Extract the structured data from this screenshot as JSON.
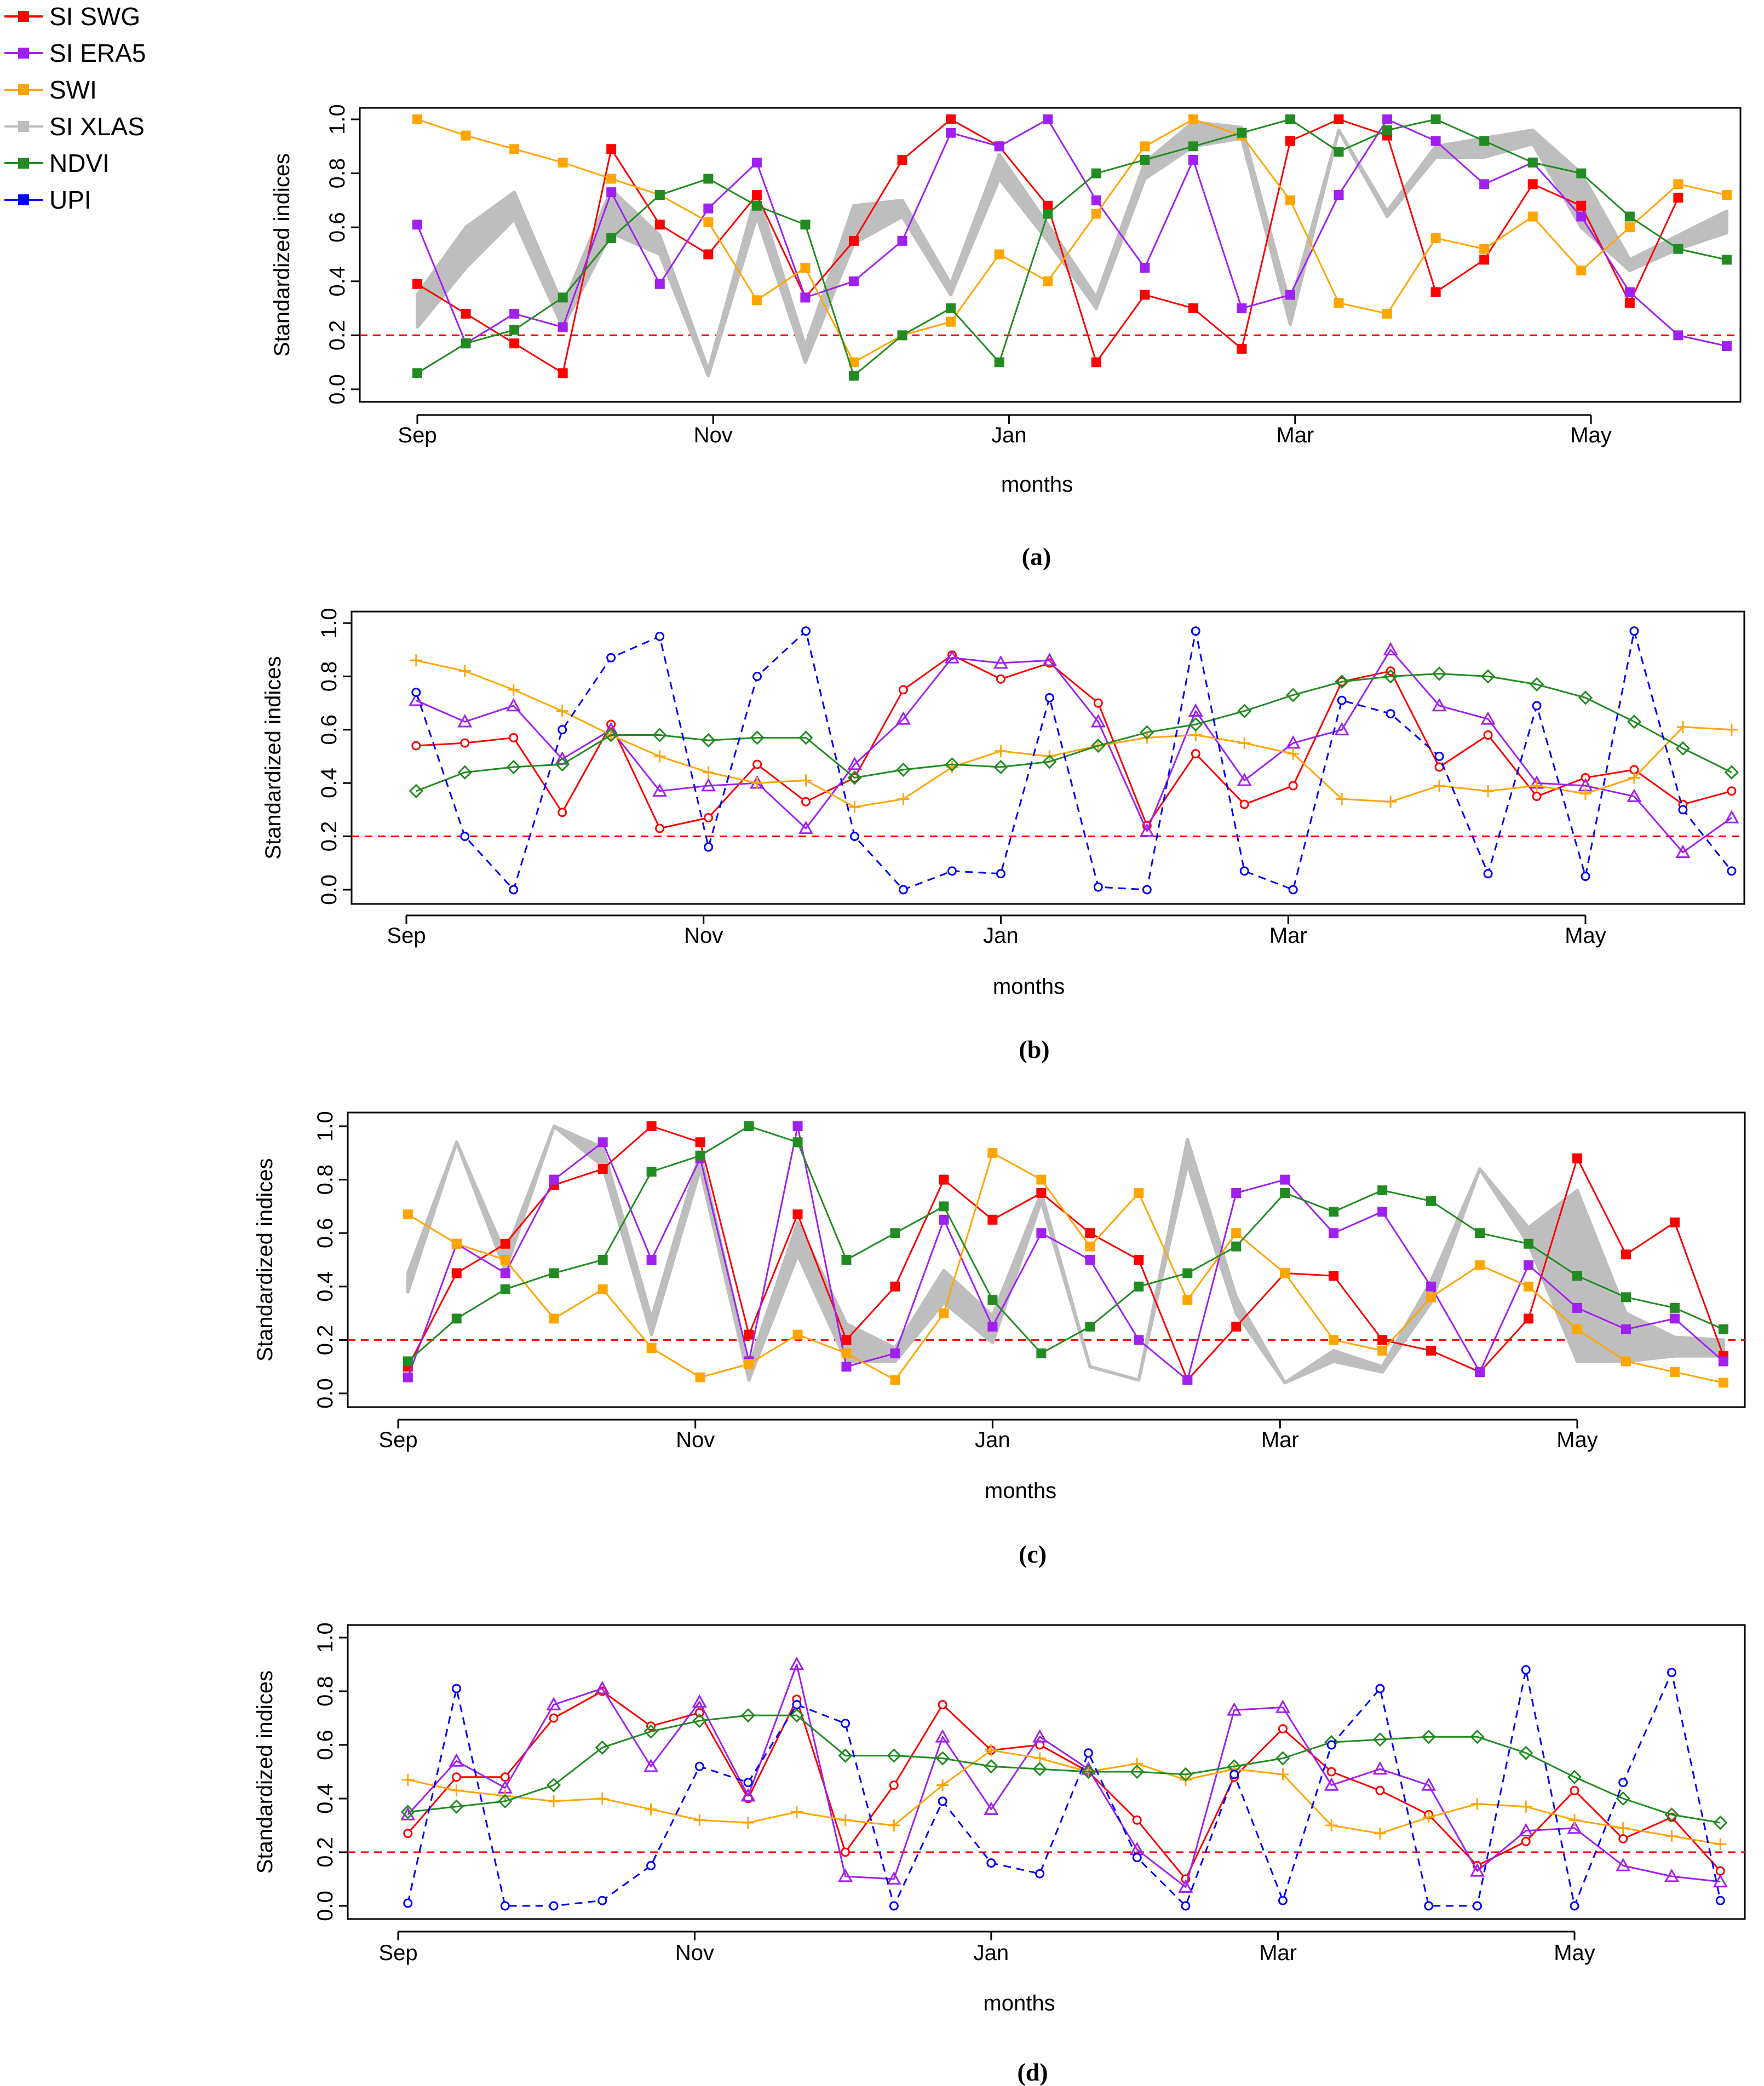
{
  "legend": {
    "entries": [
      {
        "label": "SI SWG",
        "color": "#ff0000",
        "marker": "square"
      },
      {
        "label": "SI ERA5",
        "color": "#a020f0",
        "marker": "square"
      },
      {
        "label": "SWI",
        "color": "#ffa500",
        "marker": "square"
      },
      {
        "label": "SI XLAS",
        "color": "#bebebe",
        "marker": "square"
      },
      {
        "label": "NDVI",
        "color": "#228b22",
        "marker": "square"
      },
      {
        "label": "UPI",
        "color": "#0000ff",
        "marker": "square"
      }
    ]
  },
  "chart_data": [
    {
      "type": "line",
      "caption": "(a)",
      "xlabel": "months",
      "ylabel": "Standardized indices",
      "ylim": [
        0,
        1
      ],
      "yticks": [
        "0.0",
        "0.2",
        "0.4",
        "0.6",
        "0.8",
        "1.0"
      ],
      "month_ticks": [
        {
          "label": "Sep",
          "t": 0
        },
        {
          "label": "Nov",
          "t": 61
        },
        {
          "label": "Jan",
          "t": 122
        },
        {
          "label": "Mar",
          "t": 181
        },
        {
          "label": "May",
          "t": 242
        }
      ],
      "threshold": 0.2,
      "x_days": [
        0,
        10,
        20,
        30,
        40,
        50,
        60,
        70,
        80,
        90,
        100,
        110,
        120,
        130,
        140,
        150,
        160,
        170,
        180,
        190,
        200,
        210,
        220,
        230,
        240,
        250,
        260,
        270
      ],
      "band": {
        "name": "SI XLAS",
        "color": "#bebebe",
        "lower": [
          0.23,
          0.45,
          0.63,
          0.23,
          0.58,
          0.5,
          0.05,
          0.64,
          0.1,
          0.54,
          0.64,
          0.35,
          0.78,
          0.55,
          0.3,
          0.78,
          0.9,
          0.93,
          0.24,
          0.96,
          0.64,
          0.86,
          0.86,
          0.91,
          0.6,
          0.44,
          0.52,
          0.58
        ],
        "upper": [
          0.35,
          0.6,
          0.73,
          0.31,
          0.74,
          0.57,
          0.07,
          0.73,
          0.16,
          0.68,
          0.7,
          0.39,
          0.87,
          0.61,
          0.34,
          0.84,
          0.99,
          0.97,
          0.31,
          0.96,
          0.66,
          0.9,
          0.93,
          0.96,
          0.8,
          0.48,
          0.57,
          0.66
        ]
      },
      "series": [
        {
          "name": "SI SWG",
          "color": "#ff0000",
          "marker": "square",
          "dash": false,
          "values": [
            0.39,
            0.28,
            0.17,
            0.06,
            0.89,
            0.61,
            0.5,
            0.72,
            0.34,
            0.55,
            0.85,
            1.0,
            0.9,
            0.68,
            0.1,
            0.35,
            0.3,
            0.15,
            0.92,
            1.0,
            0.94,
            0.36,
            0.48,
            0.76,
            0.68,
            0.32,
            0.71,
            null
          ]
        },
        {
          "name": "SI ERA5",
          "color": "#a020f0",
          "marker": "square",
          "dash": false,
          "values": [
            0.61,
            0.17,
            0.28,
            0.23,
            0.73,
            0.39,
            0.67,
            0.84,
            0.34,
            0.4,
            0.55,
            0.95,
            0.9,
            1.0,
            0.7,
            0.45,
            0.85,
            0.3,
            0.35,
            0.72,
            1.0,
            0.92,
            0.76,
            0.84,
            0.64,
            0.36,
            0.2,
            0.16
          ]
        },
        {
          "name": "SWI",
          "color": "#ffa500",
          "marker": "square",
          "dash": false,
          "values": [
            1.0,
            0.94,
            0.89,
            0.84,
            0.78,
            0.72,
            0.62,
            0.33,
            0.45,
            0.1,
            0.2,
            0.25,
            0.5,
            0.4,
            0.65,
            0.9,
            1.0,
            0.94,
            0.7,
            0.32,
            0.28,
            0.56,
            0.52,
            0.64,
            0.44,
            0.6,
            0.76,
            0.72
          ]
        },
        {
          "name": "NDVI",
          "color": "#228b22",
          "marker": "square",
          "dash": false,
          "values": [
            0.06,
            0.17,
            0.22,
            0.34,
            0.56,
            0.72,
            0.78,
            0.68,
            0.61,
            0.05,
            0.2,
            0.3,
            0.1,
            0.65,
            0.8,
            0.85,
            0.9,
            0.95,
            1.0,
            0.88,
            0.96,
            1.0,
            0.92,
            0.84,
            0.8,
            0.64,
            0.52,
            0.48
          ]
        }
      ]
    },
    {
      "type": "line",
      "caption": "(b)",
      "xlabel": "months",
      "ylabel": "Standardized indices",
      "ylim": [
        0,
        1
      ],
      "yticks": [
        "0.0",
        "0.2",
        "0.4",
        "0.6",
        "0.8",
        "1.0"
      ],
      "month_ticks": [
        {
          "label": "Sep",
          "t": 0
        },
        {
          "label": "Nov",
          "t": 61
        },
        {
          "label": "Jan",
          "t": 122
        },
        {
          "label": "Mar",
          "t": 181
        },
        {
          "label": "May",
          "t": 242
        }
      ],
      "threshold": 0.2,
      "x_days": [
        2,
        12,
        22,
        32,
        42,
        52,
        62,
        72,
        82,
        92,
        102,
        112,
        122,
        132,
        142,
        152,
        162,
        172,
        182,
        192,
        202,
        212,
        222,
        232,
        242,
        252,
        262,
        272
      ],
      "series": [
        {
          "name": "SI SWG",
          "color": "#ff0000",
          "marker": "circle",
          "dash": false,
          "values": [
            0.54,
            0.55,
            0.57,
            0.29,
            0.62,
            0.23,
            0.27,
            0.47,
            0.33,
            0.42,
            0.75,
            0.88,
            0.79,
            0.85,
            0.7,
            0.24,
            0.51,
            0.32,
            0.39,
            0.78,
            0.82,
            0.46,
            0.58,
            0.35,
            0.42,
            0.45,
            0.32,
            0.37
          ]
        },
        {
          "name": "SI ERA5",
          "color": "#a020f0",
          "marker": "triangle",
          "dash": false,
          "values": [
            0.71,
            0.63,
            0.69,
            0.49,
            0.6,
            0.37,
            0.39,
            0.4,
            0.23,
            0.47,
            0.64,
            0.87,
            0.85,
            0.86,
            0.63,
            0.22,
            0.67,
            0.41,
            0.55,
            0.6,
            0.9,
            0.69,
            0.64,
            0.4,
            0.39,
            0.35,
            0.14,
            0.27
          ]
        },
        {
          "name": "SWI",
          "color": "#ffa500",
          "marker": "plus",
          "dash": false,
          "values": [
            0.86,
            0.82,
            0.75,
            0.67,
            0.58,
            0.5,
            0.44,
            0.4,
            0.41,
            0.31,
            0.34,
            0.46,
            0.52,
            0.5,
            0.54,
            0.57,
            0.58,
            0.55,
            0.51,
            0.34,
            0.33,
            0.39,
            0.37,
            0.39,
            0.36,
            0.42,
            0.61,
            0.6
          ]
        },
        {
          "name": "NDVI",
          "color": "#228b22",
          "marker": "diamond",
          "dash": false,
          "values": [
            0.37,
            0.44,
            0.46,
            0.47,
            0.58,
            0.58,
            0.56,
            0.57,
            0.57,
            0.42,
            0.45,
            0.47,
            0.46,
            0.48,
            0.54,
            0.59,
            0.62,
            0.67,
            0.73,
            0.78,
            0.8,
            0.81,
            0.8,
            0.77,
            0.72,
            0.63,
            0.53,
            0.44
          ]
        },
        {
          "name": "UPI",
          "color": "#0000ff",
          "marker": "circle",
          "dash": true,
          "values": [
            0.74,
            0.2,
            0.0,
            0.6,
            0.87,
            0.95,
            0.16,
            0.8,
            0.97,
            0.2,
            0.0,
            0.07,
            0.06,
            0.72,
            0.01,
            0.0,
            0.97,
            0.07,
            0.0,
            0.71,
            0.66,
            0.5,
            0.06,
            0.69,
            0.05,
            0.97,
            0.3,
            0.07
          ]
        }
      ]
    },
    {
      "type": "line",
      "caption": "(c)",
      "xlabel": "months",
      "ylabel": "Standardized indices",
      "ylim": [
        0,
        1
      ],
      "yticks": [
        "0.0",
        "0.2",
        "0.4",
        "0.6",
        "0.8",
        "1.0"
      ],
      "month_ticks": [
        {
          "label": "Sep",
          "t": 0
        },
        {
          "label": "Nov",
          "t": 61
        },
        {
          "label": "Jan",
          "t": 122
        },
        {
          "label": "Mar",
          "t": 181
        },
        {
          "label": "May",
          "t": 242
        }
      ],
      "threshold": 0.2,
      "x_days": [
        2,
        12,
        22,
        32,
        42,
        52,
        62,
        72,
        82,
        92,
        102,
        112,
        122,
        132,
        142,
        152,
        162,
        172,
        182,
        192,
        202,
        212,
        222,
        232,
        242,
        252,
        262,
        272
      ],
      "band": {
        "name": "SI XLAS",
        "color": "#bebebe",
        "lower": [
          0.38,
          0.94,
          0.46,
          1.0,
          0.85,
          0.22,
          0.84,
          0.05,
          0.52,
          0.12,
          0.12,
          0.34,
          0.19,
          0.72,
          0.1,
          0.05,
          0.86,
          0.3,
          0.04,
          0.12,
          0.08,
          0.34,
          0.84,
          0.56,
          0.12,
          0.12,
          0.14,
          0.14
        ],
        "upper": [
          0.45,
          0.94,
          0.52,
          1.0,
          0.92,
          0.28,
          0.9,
          0.1,
          0.64,
          0.26,
          0.17,
          0.46,
          0.29,
          0.75,
          0.1,
          0.05,
          0.95,
          0.36,
          0.04,
          0.16,
          0.1,
          0.42,
          0.84,
          0.62,
          0.76,
          0.3,
          0.21,
          0.2
        ]
      },
      "series": [
        {
          "name": "SI SWG",
          "color": "#ff0000",
          "marker": "square",
          "dash": false,
          "values": [
            0.1,
            0.45,
            0.56,
            0.78,
            0.84,
            1.0,
            0.94,
            0.22,
            0.67,
            0.2,
            0.4,
            0.8,
            0.65,
            0.75,
            0.6,
            0.5,
            0.05,
            0.25,
            0.45,
            0.44,
            0.2,
            0.16,
            0.08,
            0.28,
            0.88,
            0.52,
            0.64,
            0.14
          ]
        },
        {
          "name": "SI ERA5",
          "color": "#a020f0",
          "marker": "square",
          "dash": false,
          "values": [
            0.06,
            0.56,
            0.45,
            0.8,
            0.94,
            0.5,
            0.88,
            0.12,
            1.0,
            0.1,
            0.15,
            0.65,
            0.25,
            0.6,
            0.5,
            0.2,
            0.05,
            0.75,
            0.8,
            0.6,
            0.68,
            0.4,
            0.08,
            0.48,
            0.32,
            0.24,
            0.28,
            0.12
          ]
        },
        {
          "name": "SWI",
          "color": "#ffa500",
          "marker": "square",
          "dash": false,
          "values": [
            0.67,
            0.56,
            0.5,
            0.28,
            0.39,
            0.17,
            0.06,
            0.11,
            0.22,
            0.15,
            0.05,
            0.3,
            0.9,
            0.8,
            0.55,
            0.75,
            0.35,
            0.6,
            0.45,
            0.2,
            0.16,
            0.36,
            0.48,
            0.4,
            0.24,
            0.12,
            0.08,
            0.04
          ]
        },
        {
          "name": "NDVI",
          "color": "#228b22",
          "marker": "square",
          "dash": false,
          "values": [
            0.12,
            0.28,
            0.39,
            0.45,
            0.5,
            0.83,
            0.89,
            1.0,
            0.94,
            0.5,
            0.6,
            0.7,
            0.35,
            0.15,
            0.25,
            0.4,
            0.45,
            0.55,
            0.75,
            0.68,
            0.76,
            0.72,
            0.6,
            0.56,
            0.44,
            0.36,
            0.32,
            0.24
          ]
        }
      ]
    },
    {
      "type": "line",
      "caption": "(d)",
      "xlabel": "months",
      "ylabel": "Standardized indices",
      "ylim": [
        0,
        1
      ],
      "yticks": [
        "0.0",
        "0.2",
        "0.4",
        "0.6",
        "0.8",
        "1.0"
      ],
      "month_ticks": [
        {
          "label": "Sep",
          "t": 0
        },
        {
          "label": "Nov",
          "t": 61
        },
        {
          "label": "Jan",
          "t": 122
        },
        {
          "label": "Mar",
          "t": 181
        },
        {
          "label": "May",
          "t": 242
        }
      ],
      "threshold": 0.2,
      "x_days": [
        2,
        12,
        22,
        32,
        42,
        52,
        62,
        72,
        82,
        92,
        102,
        112,
        122,
        132,
        142,
        152,
        162,
        172,
        182,
        192,
        202,
        212,
        222,
        232,
        242,
        252,
        262,
        272
      ],
      "series": [
        {
          "name": "SI SWG",
          "color": "#ff0000",
          "marker": "circle",
          "dash": false,
          "values": [
            0.27,
            0.48,
            0.48,
            0.7,
            0.8,
            0.67,
            0.72,
            0.4,
            0.77,
            0.2,
            0.45,
            0.75,
            0.58,
            0.6,
            0.5,
            0.32,
            0.1,
            0.48,
            0.66,
            0.5,
            0.43,
            0.34,
            0.15,
            0.24,
            0.43,
            0.25,
            0.33,
            0.13
          ]
        },
        {
          "name": "SI ERA5",
          "color": "#a020f0",
          "marker": "triangle",
          "dash": false,
          "values": [
            0.34,
            0.54,
            0.44,
            0.75,
            0.81,
            0.52,
            0.76,
            0.41,
            0.9,
            0.11,
            0.1,
            0.63,
            0.36,
            0.63,
            0.51,
            0.21,
            0.07,
            0.73,
            0.74,
            0.45,
            0.51,
            0.45,
            0.13,
            0.28,
            0.29,
            0.15,
            0.11,
            0.09
          ]
        },
        {
          "name": "SWI",
          "color": "#ffa500",
          "marker": "plus",
          "dash": false,
          "values": [
            0.47,
            0.43,
            0.41,
            0.39,
            0.4,
            0.36,
            0.32,
            0.31,
            0.35,
            0.32,
            0.3,
            0.45,
            0.58,
            0.55,
            0.5,
            0.53,
            0.47,
            0.51,
            0.49,
            0.3,
            0.27,
            0.33,
            0.38,
            0.37,
            0.32,
            0.29,
            0.26,
            0.23
          ]
        },
        {
          "name": "NDVI",
          "color": "#228b22",
          "marker": "diamond",
          "dash": false,
          "values": [
            0.35,
            0.37,
            0.39,
            0.45,
            0.59,
            0.65,
            0.69,
            0.71,
            0.71,
            0.56,
            0.56,
            0.55,
            0.52,
            0.51,
            0.5,
            0.5,
            0.49,
            0.52,
            0.55,
            0.61,
            0.62,
            0.63,
            0.63,
            0.57,
            0.48,
            0.4,
            0.34,
            0.31
          ]
        },
        {
          "name": "UPI",
          "color": "#0000ff",
          "marker": "circle",
          "dash": true,
          "values": [
            0.01,
            0.81,
            0.0,
            0.0,
            0.02,
            0.15,
            0.52,
            0.46,
            0.75,
            0.68,
            0.0,
            0.39,
            0.16,
            0.12,
            0.57,
            0.18,
            0.0,
            0.49,
            0.02,
            0.6,
            0.81,
            0.0,
            0.0,
            0.88,
            0.0,
            0.46,
            0.87,
            0.02
          ]
        }
      ]
    }
  ]
}
